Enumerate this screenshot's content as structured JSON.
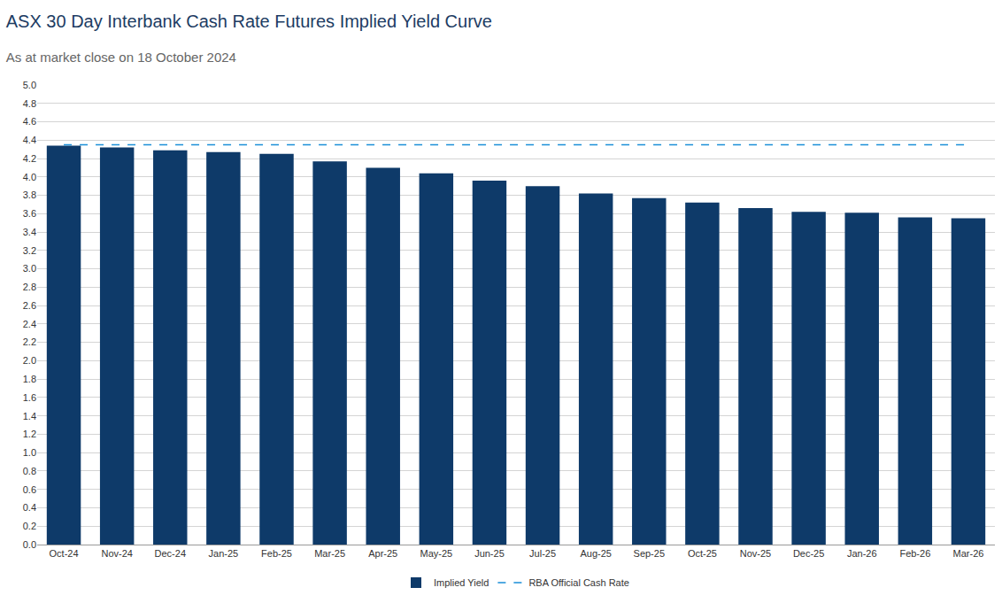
{
  "chart_data": {
    "type": "bar",
    "title": "ASX 30 Day Interbank Cash Rate Futures Implied Yield Curve",
    "subtitle": "As at market close on 18 October 2024",
    "categories": [
      "Oct-24",
      "Nov-24",
      "Dec-24",
      "Jan-25",
      "Feb-25",
      "Mar-25",
      "Apr-25",
      "May-25",
      "Jun-25",
      "Jul-25",
      "Aug-25",
      "Sep-25",
      "Oct-25",
      "Nov-25",
      "Dec-25",
      "Jan-26",
      "Feb-26",
      "Mar-26"
    ],
    "series": [
      {
        "name": "Implied Yield",
        "type": "bar",
        "color": "#0e3a69",
        "values": [
          4.34,
          4.32,
          4.29,
          4.27,
          4.25,
          4.17,
          4.1,
          4.04,
          3.96,
          3.9,
          3.82,
          3.77,
          3.72,
          3.66,
          3.62,
          3.61,
          3.56,
          3.55
        ]
      },
      {
        "name": "RBA Official Cash Rate",
        "type": "line",
        "line_style": "dashed",
        "color": "#1b8fd8",
        "values": [
          4.35,
          4.35,
          4.35,
          4.35,
          4.35,
          4.35,
          4.35,
          4.35,
          4.35,
          4.35,
          4.35,
          4.35,
          4.35,
          4.35,
          4.35,
          4.35,
          4.35,
          4.35
        ]
      }
    ],
    "ylim": [
      0,
      5
    ],
    "yticks": [
      {
        "value": 0,
        "label": "0.0"
      },
      0.2,
      0.4,
      0.6,
      0.8,
      {
        "value": 1,
        "label": "1.0"
      },
      1.2,
      1.4,
      1.6,
      1.8,
      {
        "value": 2,
        "label": "2.0"
      },
      2.2,
      2.4,
      2.6,
      2.8,
      {
        "value": 3,
        "label": "3.0"
      },
      3.2,
      3.4,
      3.6,
      3.8,
      {
        "value": 4,
        "label": "4.0"
      },
      4.2,
      4.4,
      4.6,
      4.8,
      {
        "value": 5,
        "label": "5.0"
      }
    ],
    "grid": true,
    "legend": "bottom"
  }
}
